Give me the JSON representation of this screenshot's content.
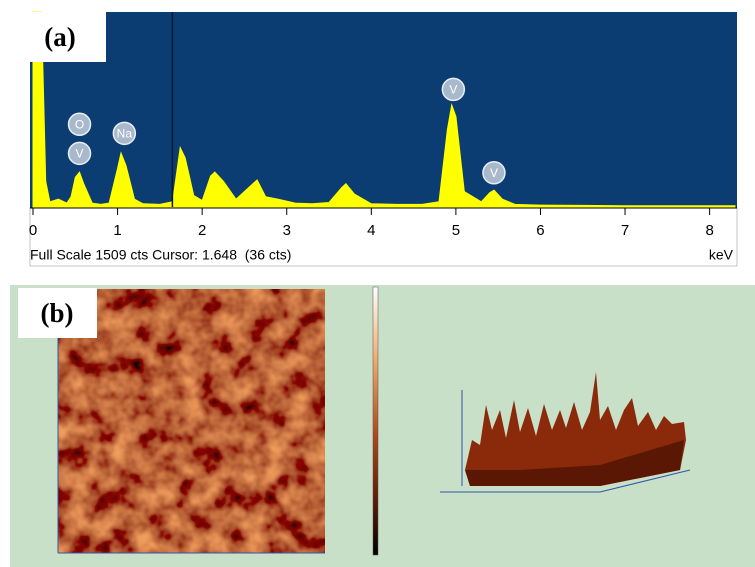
{
  "chart_data": {
    "type": "area",
    "panel_label": "(a)",
    "x": [
      0,
      0.05,
      0.1,
      0.15,
      0.2,
      0.3,
      0.4,
      0.45,
      0.5,
      0.55,
      0.6,
      0.7,
      0.8,
      0.9,
      1.0,
      1.04,
      1.1,
      1.2,
      1.3,
      1.5,
      1.65,
      1.74,
      1.8,
      1.9,
      2.0,
      2.1,
      2.15,
      2.25,
      2.4,
      2.55,
      2.65,
      2.75,
      2.9,
      3.1,
      3.3,
      3.5,
      3.65,
      3.7,
      3.8,
      4.0,
      4.3,
      4.6,
      4.8,
      4.9,
      4.95,
      5.0,
      5.1,
      5.3,
      5.4,
      5.45,
      5.55,
      5.7,
      6.0,
      6.5,
      7.0,
      7.5,
      8.0,
      8.3
    ],
    "values": [
      1509,
      1509,
      1509,
      200,
      40,
      60,
      30,
      80,
      230,
      270,
      180,
      30,
      20,
      30,
      300,
      418,
      320,
      60,
      25,
      20,
      40,
      460,
      380,
      90,
      50,
      240,
      270,
      200,
      60,
      150,
      210,
      80,
      60,
      30,
      25,
      35,
      150,
      180,
      100,
      25,
      20,
      20,
      40,
      600,
      790,
      700,
      120,
      40,
      110,
      130,
      60,
      20,
      15,
      12,
      10,
      10,
      10,
      10
    ],
    "color": "#ffff00",
    "background": "#0b3d73",
    "xlim": [
      0,
      8.3
    ],
    "ylim": [
      0,
      1509
    ],
    "xticks": [
      0,
      1,
      2,
      3,
      4,
      5,
      6,
      7,
      8
    ],
    "xlabel": "keV",
    "footer": "Full Scale 1509 cts Cursor: 1.648  (36 cts)",
    "cursor_x": 1.648,
    "annotations": [
      {
        "text": "O",
        "x": 0.55,
        "y": 640
      },
      {
        "text": "V",
        "x": 0.55,
        "y": 415
      },
      {
        "text": "Na",
        "x": 1.08,
        "y": 570
      },
      {
        "text": "V",
        "x": 4.97,
        "y": 910
      },
      {
        "text": "V",
        "x": 5.45,
        "y": 265
      }
    ]
  },
  "panel_b": {
    "label": "(b)"
  }
}
